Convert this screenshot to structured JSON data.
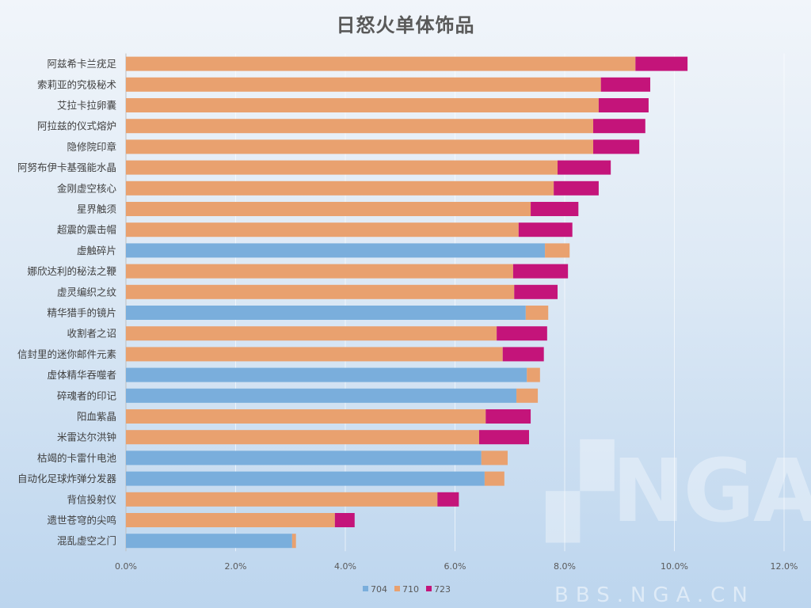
{
  "watermark": {
    "logo": "NGA",
    "site": "BBS.NGA.CN"
  },
  "chart_data": {
    "type": "bar",
    "orientation": "horizontal",
    "stacked": true,
    "title": "日怒火单体饰品",
    "xlabel": "",
    "ylabel": "",
    "xlim": [
      0,
      12
    ],
    "x_ticks": [
      "0.0%",
      "2.0%",
      "4.0%",
      "6.0%",
      "8.0%",
      "10.0%",
      "12.0%"
    ],
    "grid": "vertical",
    "legend_position": "bottom",
    "categories": [
      "阿兹希卡兰疣足",
      "索莉亚的究极秘术",
      "艾拉卡拉卵囊",
      "阿拉兹的仪式熔炉",
      "隐修院印章",
      "阿努布伊卡基强能水晶",
      "金刚虚空核心",
      "星界触须",
      "超震的震击帽",
      "虚触碎片",
      "娜欣达利的秘法之鞭",
      "虚灵编织之纹",
      "精华猎手的镜片",
      "收割者之诏",
      "信封里的迷你邮件元素",
      "虚体精华吞噬者",
      "碎魂者的印记",
      "阳血紫晶",
      "米雷达尔洪钟",
      "枯竭的卡雷什电池",
      "自动化足球炸弹分发器",
      "背信投射仪",
      "遗世苍穹的尖鸣",
      "混乱虚空之门"
    ],
    "series": [
      {
        "name": "704",
        "color": "#7aaedc",
        "values": [
          null,
          null,
          null,
          null,
          null,
          null,
          null,
          null,
          null,
          7.64,
          null,
          null,
          7.29,
          null,
          null,
          7.31,
          7.12,
          null,
          null,
          6.48,
          6.54,
          null,
          null,
          3.03
        ]
      },
      {
        "name": "710",
        "color": "#e9a16f",
        "values": [
          9.29,
          8.66,
          8.62,
          8.52,
          8.52,
          7.87,
          7.8,
          7.38,
          7.16,
          0.45,
          7.06,
          7.08,
          0.41,
          6.76,
          6.87,
          0.24,
          0.39,
          6.56,
          6.44,
          0.48,
          0.36,
          5.68,
          3.81,
          0.07
        ]
      },
      {
        "name": "723",
        "color": "#c4147a",
        "values": [
          0.95,
          0.9,
          0.91,
          0.95,
          0.84,
          0.97,
          0.82,
          0.87,
          0.98,
          null,
          1.0,
          0.79,
          null,
          0.92,
          0.75,
          null,
          null,
          0.82,
          0.91,
          null,
          null,
          0.39,
          0.36,
          null
        ]
      }
    ],
    "unit": "%"
  }
}
